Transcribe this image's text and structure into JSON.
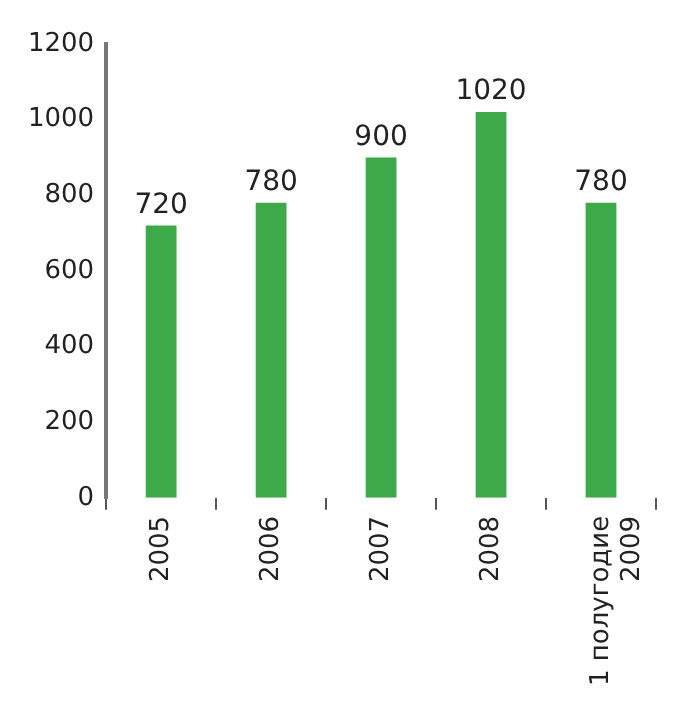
{
  "chart_data": {
    "type": "bar",
    "categories": [
      "2005",
      "2006",
      "2007",
      "2008",
      "1 полугодие\n2009"
    ],
    "values": [
      720,
      780,
      900,
      1020,
      780
    ],
    "color": "#3daa4a",
    "ylim": [
      0,
      1200
    ],
    "yticks": [
      0,
      200,
      400,
      600,
      800,
      1000,
      1200
    ],
    "grid": false,
    "legend": false,
    "data_labels": true
  }
}
